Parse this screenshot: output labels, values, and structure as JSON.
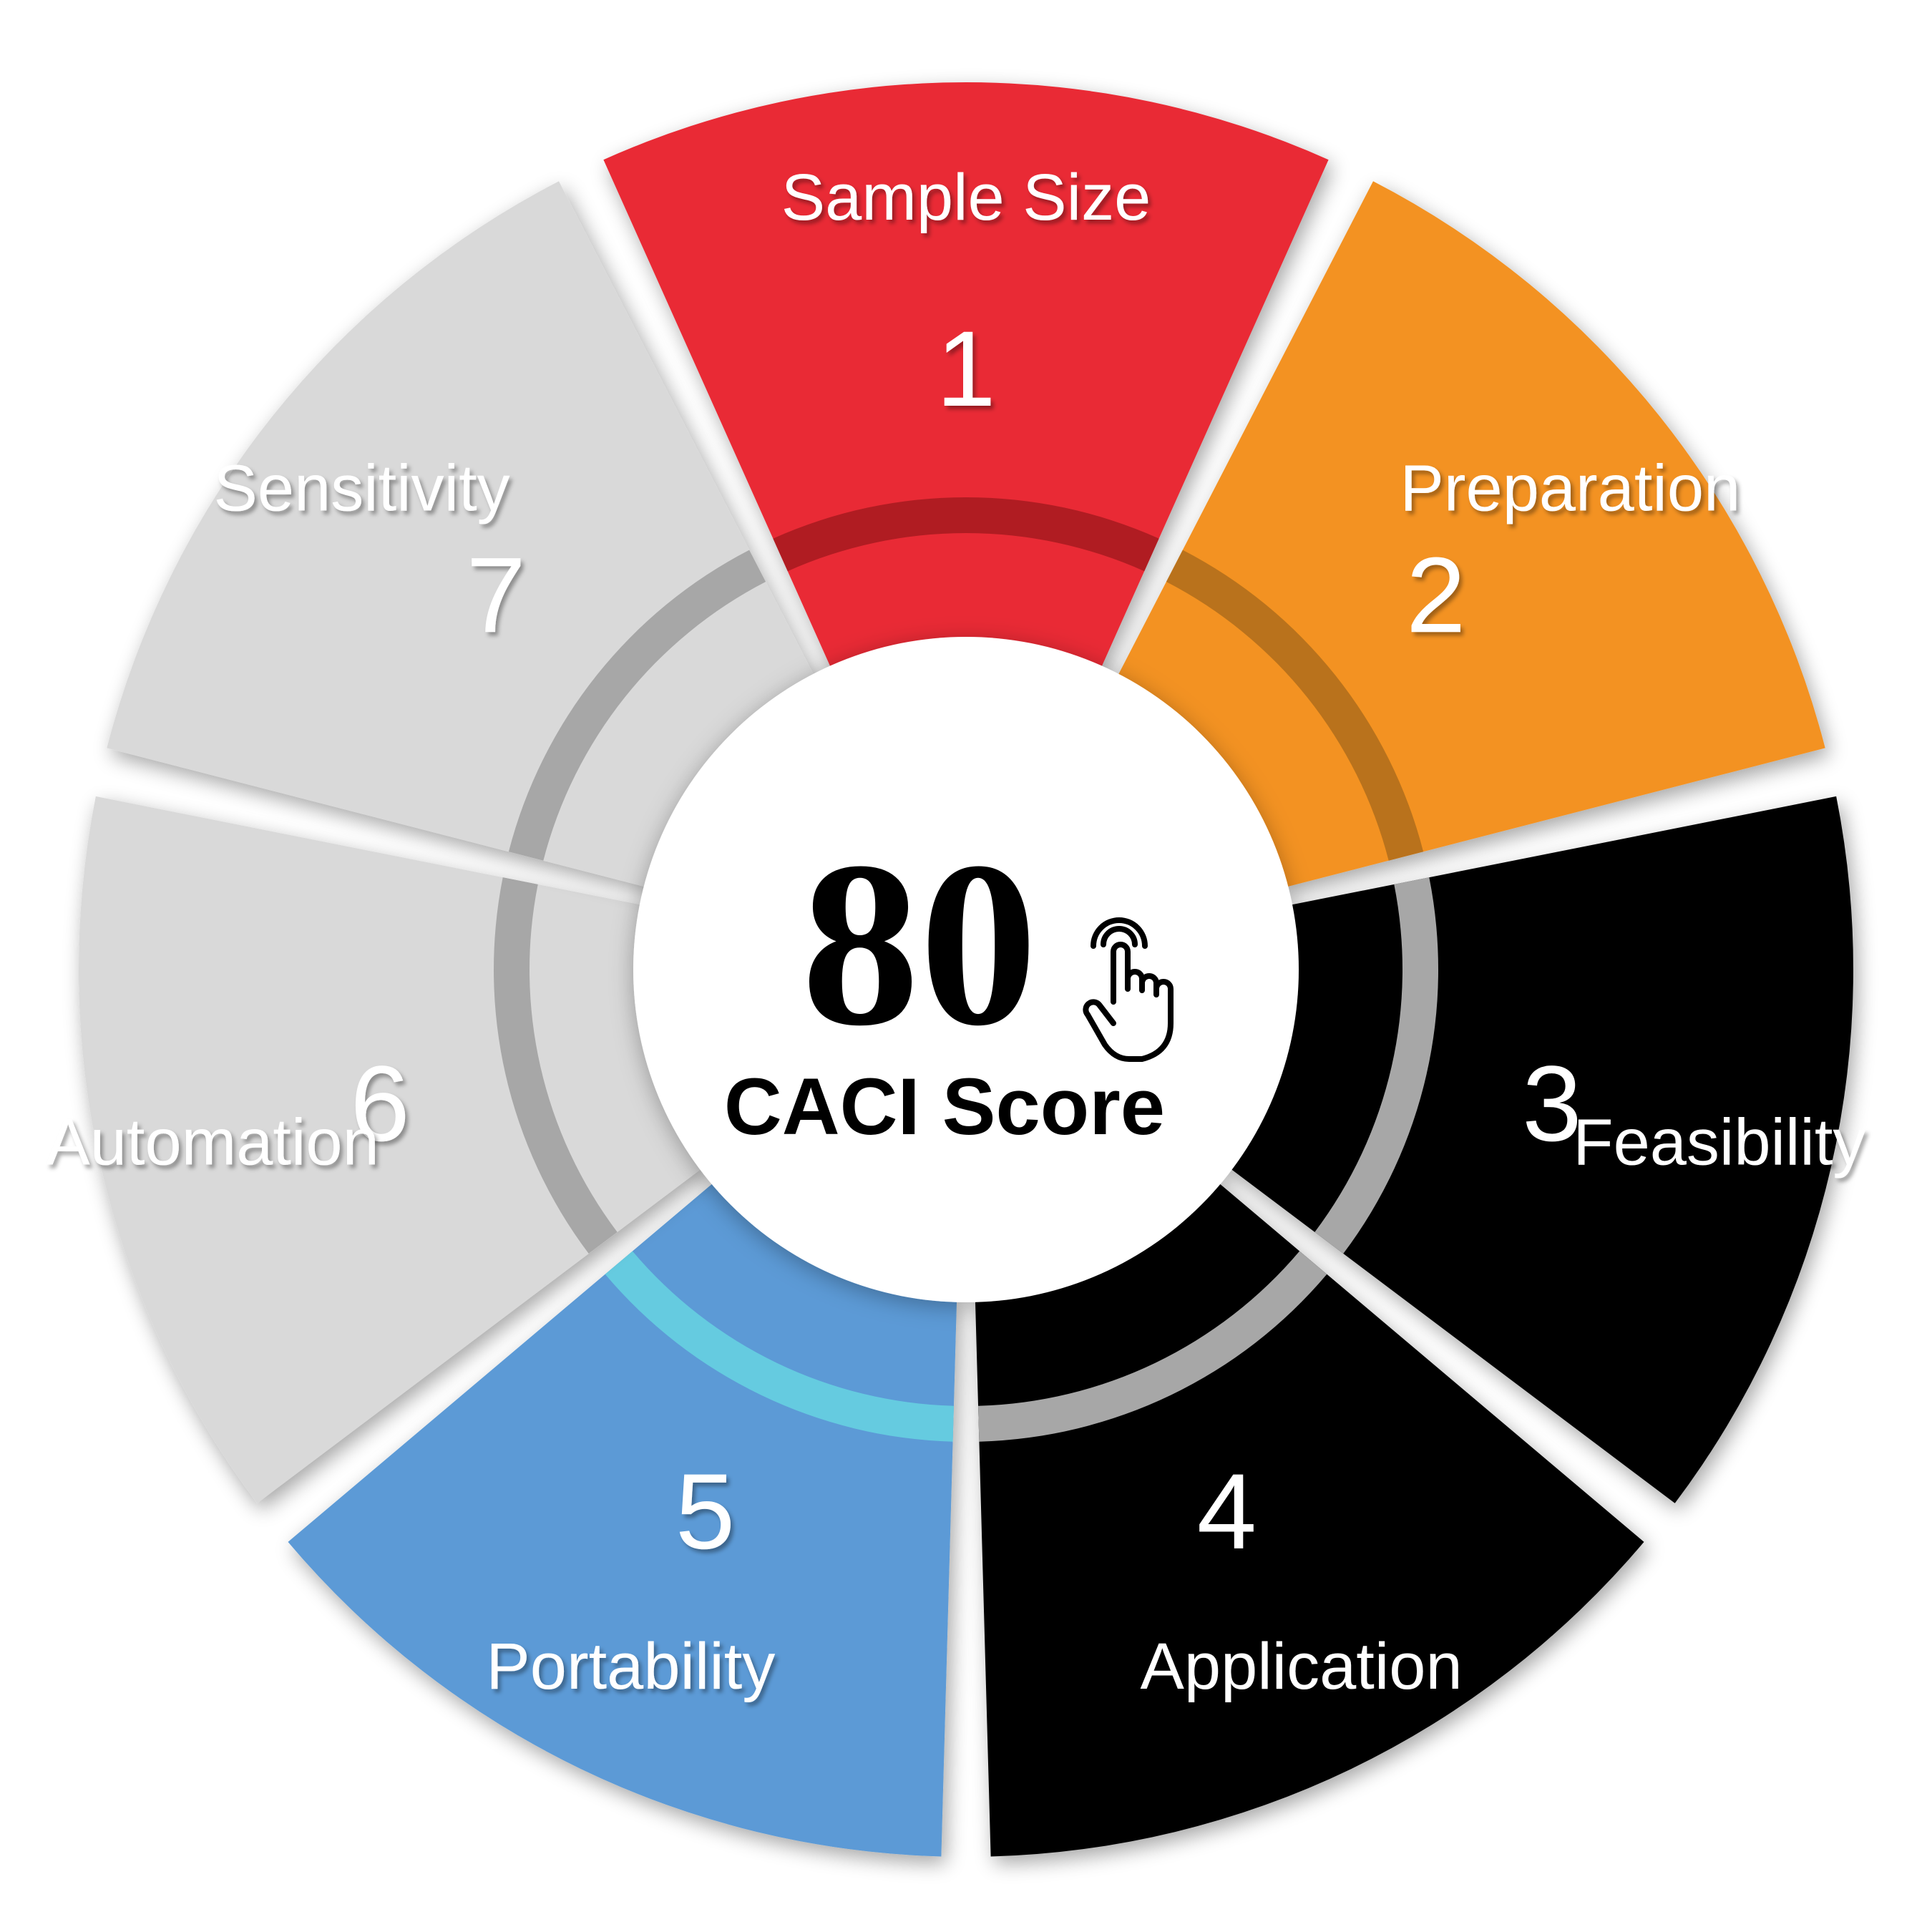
{
  "center": {
    "score": "80",
    "caption": "CACI Score",
    "icon": "pointing-hand-icon"
  },
  "segments": [
    {
      "number": "1",
      "label": "Sample Size",
      "color": "#e92b35",
      "band": "#b01e24"
    },
    {
      "number": "2",
      "label": "Preparation",
      "color": "#f39220",
      "band": "#b9721e"
    },
    {
      "number": "3",
      "label": "Feasibility",
      "color": "#000000",
      "band": "#a7a7a7"
    },
    {
      "number": "4",
      "label": "Application",
      "color": "#000000",
      "band": "#a7a7a7"
    },
    {
      "number": "5",
      "label": "Portability",
      "color": "#5b9ad6",
      "band": "#65cbe0"
    },
    {
      "number": "6",
      "label": "Automation",
      "color": "#d9d9d9",
      "band": "#a7a7a7"
    },
    {
      "number": "7",
      "label": "Sensitivity",
      "color": "#d9d9d9",
      "band": "#a7a7a7"
    }
  ]
}
